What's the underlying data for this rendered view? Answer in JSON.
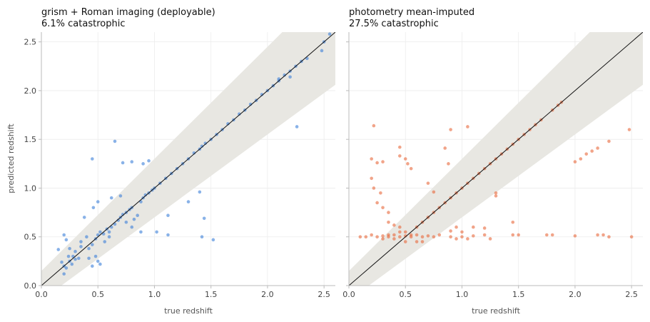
{
  "chart_data": [
    {
      "type": "scatter",
      "title": "grism + Roman imaging (deployable)",
      "subtitle": "6.1% catastrophic",
      "xlabel": "true redshift",
      "ylabel": "predicted redshift",
      "xlim": [
        0,
        2.6
      ],
      "ylim": [
        0,
        2.6
      ],
      "xticks": [
        "0.0",
        "0.5",
        "1.0",
        "1.5",
        "2.0",
        "2.5"
      ],
      "yticks": [
        "0.0",
        "0.5",
        "1.0",
        "1.5",
        "2.0",
        "2.5"
      ],
      "grid": true,
      "identity_line": true,
      "tolerance_band": true,
      "point_color": "#3a7fd9",
      "points": [
        [
          0.15,
          0.37
        ],
        [
          0.2,
          0.52
        ],
        [
          0.22,
          0.47
        ],
        [
          0.25,
          0.38
        ],
        [
          0.18,
          0.24
        ],
        [
          0.2,
          0.2
        ],
        [
          0.22,
          0.18
        ],
        [
          0.25,
          0.25
        ],
        [
          0.28,
          0.3
        ],
        [
          0.3,
          0.27
        ],
        [
          0.2,
          0.12
        ],
        [
          0.24,
          0.3
        ],
        [
          0.27,
          0.22
        ],
        [
          0.3,
          0.35
        ],
        [
          0.33,
          0.28
        ],
        [
          0.35,
          0.45
        ],
        [
          0.38,
          0.7
        ],
        [
          0.4,
          0.5
        ],
        [
          0.42,
          0.38
        ],
        [
          0.45,
          0.42
        ],
        [
          0.48,
          0.48
        ],
        [
          0.5,
          0.52
        ],
        [
          0.52,
          0.55
        ],
        [
          0.55,
          0.53
        ],
        [
          0.58,
          0.58
        ],
        [
          0.48,
          0.3
        ],
        [
          0.5,
          0.25
        ],
        [
          0.45,
          0.2
        ],
        [
          0.52,
          0.22
        ],
        [
          0.42,
          0.28
        ],
        [
          0.46,
          0.8
        ],
        [
          0.5,
          0.86
        ],
        [
          0.45,
          1.3
        ],
        [
          0.65,
          1.48
        ],
        [
          0.6,
          0.55
        ],
        [
          0.62,
          0.6
        ],
        [
          0.65,
          0.63
        ],
        [
          0.68,
          0.67
        ],
        [
          0.7,
          0.7
        ],
        [
          0.72,
          0.73
        ],
        [
          0.75,
          0.75
        ],
        [
          0.78,
          0.78
        ],
        [
          0.8,
          0.8
        ],
        [
          0.62,
          0.9
        ],
        [
          0.7,
          0.92
        ],
        [
          0.75,
          0.65
        ],
        [
          0.82,
          0.68
        ],
        [
          0.85,
          0.72
        ],
        [
          0.88,
          0.86
        ],
        [
          0.9,
          0.9
        ],
        [
          0.92,
          0.93
        ],
        [
          0.95,
          0.95
        ],
        [
          0.98,
          0.98
        ],
        [
          1.0,
          1.0
        ],
        [
          0.72,
          1.26
        ],
        [
          0.8,
          1.27
        ],
        [
          0.9,
          1.25
        ],
        [
          0.95,
          1.28
        ],
        [
          0.88,
          0.55
        ],
        [
          0.8,
          0.6
        ],
        [
          1.02,
          0.55
        ],
        [
          1.05,
          1.05
        ],
        [
          1.1,
          1.1
        ],
        [
          1.12,
          0.72
        ],
        [
          1.15,
          1.15
        ],
        [
          1.2,
          1.2
        ],
        [
          1.25,
          1.25
        ],
        [
          1.3,
          1.3
        ],
        [
          1.35,
          1.36
        ],
        [
          1.4,
          1.4
        ],
        [
          1.42,
          1.43
        ],
        [
          1.12,
          0.52
        ],
        [
          1.3,
          0.86
        ],
        [
          1.42,
          0.5
        ],
        [
          1.52,
          0.47
        ],
        [
          1.4,
          0.96
        ],
        [
          1.44,
          0.69
        ],
        [
          1.45,
          1.46
        ],
        [
          1.5,
          1.5
        ],
        [
          1.55,
          1.55
        ],
        [
          1.6,
          1.6
        ],
        [
          1.65,
          1.66
        ],
        [
          1.7,
          1.7
        ],
        [
          1.75,
          1.76
        ],
        [
          1.8,
          1.8
        ],
        [
          1.85,
          1.86
        ],
        [
          1.9,
          1.9
        ],
        [
          1.95,
          1.96
        ],
        [
          2.0,
          2.0
        ],
        [
          2.05,
          2.05
        ],
        [
          2.1,
          2.1
        ],
        [
          2.15,
          2.16
        ],
        [
          2.2,
          2.2
        ],
        [
          2.25,
          2.25
        ],
        [
          2.3,
          2.3
        ],
        [
          2.35,
          2.33
        ],
        [
          2.1,
          2.12
        ],
        [
          2.2,
          2.14
        ],
        [
          2.26,
          1.63
        ],
        [
          2.48,
          2.41
        ],
        [
          2.5,
          2.5
        ],
        [
          2.55,
          2.58
        ],
        [
          0.56,
          0.45
        ],
        [
          0.35,
          0.4
        ],
        [
          0.6,
          0.5
        ]
      ]
    },
    {
      "type": "scatter",
      "title": "photometry mean-imputed",
      "subtitle": "27.5% catastrophic",
      "xlabel": "true redshift",
      "ylabel": "",
      "xlim": [
        0,
        2.6
      ],
      "ylim": [
        0,
        2.6
      ],
      "xticks": [
        "0.0",
        "0.5",
        "1.0",
        "1.5",
        "2.0",
        "2.5"
      ],
      "yticks": [],
      "grid": true,
      "identity_line": true,
      "tolerance_band": true,
      "point_color": "#e8683a",
      "points": [
        [
          0.1,
          0.5
        ],
        [
          0.15,
          0.5
        ],
        [
          0.2,
          0.52
        ],
        [
          0.25,
          0.5
        ],
        [
          0.3,
          0.51
        ],
        [
          0.35,
          0.5
        ],
        [
          0.4,
          0.52
        ],
        [
          0.45,
          0.5
        ],
        [
          0.5,
          0.51
        ],
        [
          0.55,
          0.5
        ],
        [
          0.6,
          0.52
        ],
        [
          0.65,
          0.5
        ],
        [
          0.7,
          0.51
        ],
        [
          0.75,
          0.5
        ],
        [
          0.8,
          0.52
        ],
        [
          0.22,
          1.64
        ],
        [
          0.2,
          1.3
        ],
        [
          0.25,
          1.26
        ],
        [
          0.3,
          1.27
        ],
        [
          0.45,
          1.42
        ],
        [
          0.45,
          1.33
        ],
        [
          0.5,
          1.3
        ],
        [
          0.52,
          1.25
        ],
        [
          0.55,
          1.2
        ],
        [
          0.2,
          1.1
        ],
        [
          0.22,
          1.0
        ],
        [
          0.25,
          0.85
        ],
        [
          0.3,
          0.8
        ],
        [
          0.35,
          0.75
        ],
        [
          0.28,
          0.95
        ],
        [
          0.35,
          0.65
        ],
        [
          0.4,
          0.62
        ],
        [
          0.45,
          0.6
        ],
        [
          0.5,
          0.55
        ],
        [
          0.6,
          0.45
        ],
        [
          0.65,
          0.45
        ],
        [
          0.55,
          0.52
        ],
        [
          0.6,
          0.6
        ],
        [
          0.65,
          0.65
        ],
        [
          0.7,
          0.7
        ],
        [
          0.75,
          0.75
        ],
        [
          0.8,
          0.8
        ],
        [
          0.85,
          0.85
        ],
        [
          0.9,
          0.9
        ],
        [
          0.95,
          0.95
        ],
        [
          1.0,
          1.0
        ],
        [
          1.05,
          1.05
        ],
        [
          1.1,
          1.1
        ],
        [
          1.15,
          1.15
        ],
        [
          1.2,
          1.2
        ],
        [
          1.25,
          1.25
        ],
        [
          1.3,
          1.3
        ],
        [
          1.35,
          1.35
        ],
        [
          1.4,
          1.4
        ],
        [
          1.45,
          1.45
        ],
        [
          1.5,
          1.5
        ],
        [
          1.55,
          1.55
        ],
        [
          1.6,
          1.6
        ],
        [
          1.65,
          1.65
        ],
        [
          1.7,
          1.7
        ],
        [
          0.7,
          1.05
        ],
        [
          0.75,
          0.96
        ],
        [
          0.85,
          1.41
        ],
        [
          0.88,
          1.25
        ],
        [
          0.9,
          1.6
        ],
        [
          1.05,
          1.63
        ],
        [
          0.9,
          0.56
        ],
        [
          0.95,
          0.6
        ],
        [
          1.0,
          0.55
        ],
        [
          1.05,
          0.48
        ],
        [
          1.1,
          0.6
        ],
        [
          1.2,
          0.59
        ],
        [
          1.3,
          0.92
        ],
        [
          1.3,
          0.95
        ],
        [
          1.45,
          0.52
        ],
        [
          1.45,
          0.65
        ],
        [
          1.75,
          0.52
        ],
        [
          1.8,
          0.52
        ],
        [
          1.8,
          1.8
        ],
        [
          1.85,
          1.85
        ],
        [
          1.88,
          1.88
        ],
        [
          2.0,
          1.27
        ],
        [
          2.05,
          1.3
        ],
        [
          2.1,
          1.35
        ],
        [
          2.15,
          1.38
        ],
        [
          2.2,
          1.41
        ],
        [
          2.3,
          1.48
        ],
        [
          2.0,
          0.51
        ],
        [
          2.2,
          0.52
        ],
        [
          2.25,
          0.52
        ],
        [
          2.3,
          0.5
        ],
        [
          2.5,
          0.5
        ],
        [
          2.48,
          1.6
        ],
        [
          1.2,
          0.52
        ],
        [
          1.0,
          0.5
        ],
        [
          0.9,
          0.5
        ],
        [
          0.95,
          0.48
        ],
        [
          0.3,
          0.48
        ],
        [
          0.35,
          0.52
        ],
        [
          0.4,
          0.48
        ],
        [
          0.45,
          0.55
        ],
        [
          0.5,
          0.45
        ],
        [
          1.5,
          0.52
        ],
        [
          1.25,
          0.48
        ],
        [
          1.1,
          0.51
        ]
      ]
    }
  ],
  "style": {
    "band_color": "#e8e7e2",
    "grid_color": "#ececec",
    "spine_color": "#bbbbbb",
    "line_color": "#111111"
  }
}
